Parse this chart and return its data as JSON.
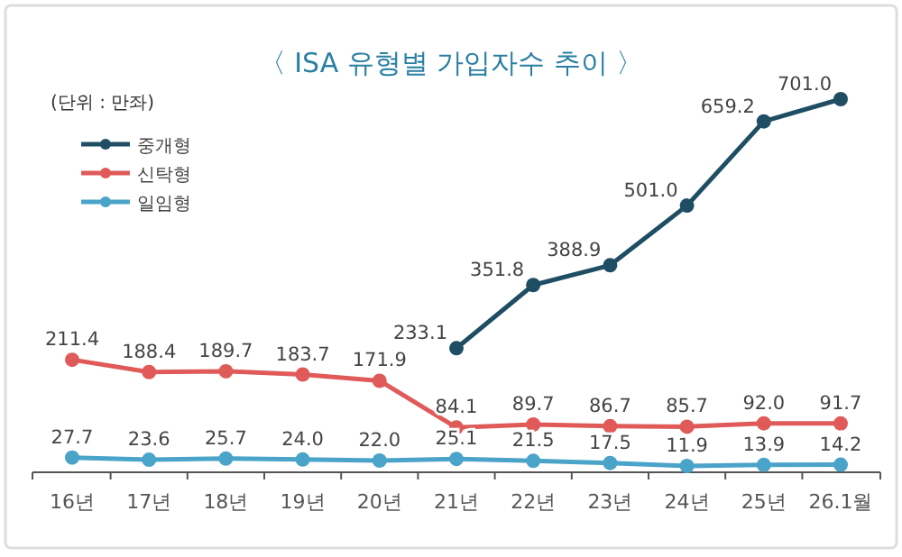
{
  "chart_data": {
    "type": "line",
    "title": "〈 ISA 유형별 가입자수 추이 〉",
    "annotations": [
      "(단위 : 만좌)"
    ],
    "categories": [
      "16년",
      "17년",
      "18년",
      "19년",
      "20년",
      "21년",
      "22년",
      "23년",
      "24년",
      "25년",
      "26.1월"
    ],
    "series": [
      {
        "name": "중개형",
        "color": "#1f4e64",
        "values": [
          null,
          null,
          null,
          null,
          null,
          233.1,
          351.8,
          388.9,
          501.0,
          659.2,
          701.0
        ],
        "value_labels": [
          null,
          null,
          null,
          null,
          null,
          "233.1",
          "351.8",
          "388.9",
          "501.0",
          "659.2",
          "701.0"
        ]
      },
      {
        "name": "신탁형",
        "color": "#e05a5a",
        "values": [
          211.4,
          188.4,
          189.7,
          183.7,
          171.9,
          84.1,
          89.7,
          86.7,
          85.7,
          92.0,
          91.7
        ],
        "value_labels": [
          "211.4",
          "188.4",
          "189.7",
          "183.7",
          "171.9",
          "84.1",
          "89.7",
          "86.7",
          "85.7",
          "92.0",
          "91.7"
        ]
      },
      {
        "name": "일임형",
        "color": "#4aa3c8",
        "values": [
          27.7,
          23.6,
          25.7,
          24.0,
          22.0,
          25.1,
          21.5,
          17.5,
          11.9,
          13.9,
          14.2
        ],
        "value_labels": [
          "27.7",
          "23.6",
          "25.7",
          "24.0",
          "22.0",
          "25.1",
          "21.5",
          "17.5",
          "11.9",
          "13.9",
          "14.2"
        ]
      }
    ],
    "marker": "circle",
    "line_style": "solid",
    "legend": "top left"
  }
}
